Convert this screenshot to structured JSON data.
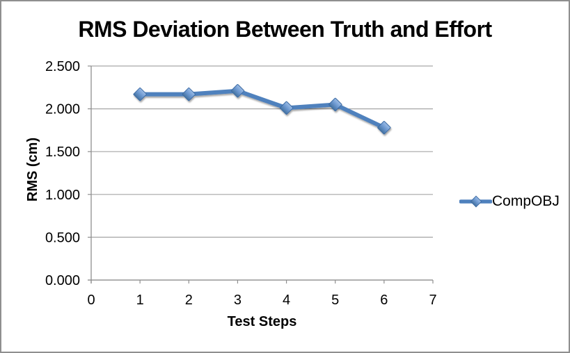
{
  "chart_data": {
    "type": "line",
    "title": "RMS Deviation Between Truth and Effort",
    "xlabel": "Test Steps",
    "ylabel": "RMS (cm)",
    "x": [
      1,
      2,
      3,
      4,
      5,
      6
    ],
    "series": [
      {
        "name": "CompOBJ",
        "color": "#4F81BD",
        "marker": "diamond",
        "values": [
          2.17,
          2.17,
          2.21,
          2.01,
          2.05,
          1.78
        ]
      }
    ],
    "xlim": [
      0,
      7
    ],
    "ylim": [
      0,
      2.5
    ],
    "x_tick_labels": [
      "0",
      "1",
      "2",
      "3",
      "4",
      "5",
      "6",
      "7"
    ],
    "y_tick_labels": [
      "0.000",
      "0.500",
      "1.000",
      "1.500",
      "2.000",
      "2.500"
    ],
    "grid": "horizontal-only",
    "legend_position": "right-middle"
  },
  "colors": {
    "series_blue": "#4F81BD",
    "marker_highlight": "#9BBCE6",
    "marker_edge": "#3E6CA5",
    "gridline": "#A6A6A6",
    "axis": "#8E8E8E",
    "frame_border": "#8F8F8F",
    "text": "#000000",
    "background": "#FFFFFF"
  }
}
